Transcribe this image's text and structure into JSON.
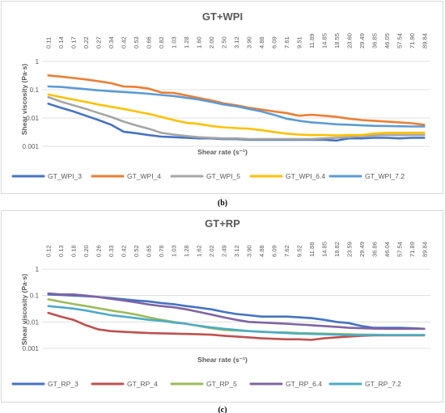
{
  "chart_data": [
    {
      "type": "line",
      "title": "GT+WPI",
      "xlabel": "Shear rate (s⁻¹)",
      "ylabel": "Shear viscosity (Pa·s)",
      "y_scale": "log",
      "ylim": [
        0.001,
        1
      ],
      "yticks": [
        "1",
        "0.1",
        "0.01",
        "0.001"
      ],
      "x_position": "top",
      "grid": "horizontal",
      "legend_position": "bottom",
      "categories": [
        "0.11",
        "0.14",
        "0.17",
        "0.22",
        "0.27",
        "0.34",
        "0.42",
        "0.53",
        "0.66",
        "0.82",
        "1.03",
        "1.28",
        "1.60",
        "2.00",
        "2.50",
        "3.12",
        "3.90",
        "4.88",
        "6.09",
        "7.61",
        "9.51",
        "11.89",
        "14.85",
        "18.55",
        "23.60",
        "29.49",
        "36.85",
        "46.05",
        "57.54",
        "71.90",
        "89.84"
      ],
      "series": [
        {
          "name": "GT_WPI_3",
          "color": "#4472c4",
          "values": [
            0.032,
            0.023,
            0.017,
            0.012,
            0.0085,
            0.0058,
            0.0033,
            0.0029,
            0.0025,
            0.0022,
            0.0021,
            0.002,
            0.0019,
            0.0019,
            0.0018,
            0.0018,
            0.0017,
            0.0017,
            0.0017,
            0.0017,
            0.0017,
            0.0017,
            0.0017,
            0.0016,
            0.0019,
            0.0019,
            0.002,
            0.002,
            0.0019,
            0.002,
            0.002
          ]
        },
        {
          "name": "GT_WPI_4",
          "color": "#ed7d31",
          "values": [
            0.32,
            0.29,
            0.26,
            0.23,
            0.2,
            0.17,
            0.13,
            0.125,
            0.11,
            0.08,
            0.077,
            0.063,
            0.051,
            0.042,
            0.033,
            0.028,
            0.023,
            0.02,
            0.017,
            0.015,
            0.012,
            0.013,
            0.012,
            0.011,
            0.0095,
            0.0085,
            0.008,
            0.0075,
            0.007,
            0.0065,
            0.0058
          ]
        },
        {
          "name": "GT_WPI_5",
          "color": "#a5a5a5",
          "values": [
            0.055,
            0.038,
            0.028,
            0.021,
            0.015,
            0.011,
            0.0075,
            0.0055,
            0.0042,
            0.003,
            0.0026,
            0.0023,
            0.0021,
            0.002,
            0.0019,
            0.0019,
            0.0018,
            0.0018,
            0.0018,
            0.0018,
            0.0018,
            0.0018,
            0.0019,
            0.002,
            0.0021,
            0.0023,
            0.0024,
            0.0025,
            0.0025,
            0.0025,
            0.0025
          ]
        },
        {
          "name": "GT_WPI_6.4",
          "color": "#ffc000",
          "values": [
            0.068,
            0.055,
            0.045,
            0.037,
            0.03,
            0.025,
            0.021,
            0.017,
            0.014,
            0.011,
            0.0085,
            0.0068,
            0.0062,
            0.0052,
            0.0047,
            0.0044,
            0.0042,
            0.0037,
            0.0032,
            0.0028,
            0.0026,
            0.0025,
            0.0025,
            0.0024,
            0.0025,
            0.0025,
            0.0028,
            0.003,
            0.003,
            0.003,
            0.003
          ]
        },
        {
          "name": "GT_WPI_7.2",
          "color": "#5b9bd5",
          "values": [
            0.13,
            0.125,
            0.115,
            0.105,
            0.095,
            0.088,
            0.083,
            0.078,
            0.072,
            0.065,
            0.06,
            0.052,
            0.045,
            0.037,
            0.03,
            0.026,
            0.021,
            0.017,
            0.013,
            0.0095,
            0.008,
            0.007,
            0.0065,
            0.006,
            0.0058,
            0.0055,
            0.0053,
            0.0052,
            0.0051,
            0.005,
            0.005
          ]
        }
      ]
    },
    {
      "type": "line",
      "title": "GT+RP",
      "xlabel": "Shear rate (s⁻¹)",
      "ylabel": "Shear viscosity (Pa·s)",
      "y_scale": "log",
      "ylim": [
        0.001,
        1
      ],
      "yticks": [
        "1",
        "0.1",
        "0.01",
        "0.001"
      ],
      "x_position": "top",
      "grid": "horizontal",
      "legend_position": "bottom",
      "categories": [
        "0.12",
        "0.13",
        "0.18",
        "0.20",
        "0.26",
        "0.33",
        "0.42",
        "0.52",
        "0.65",
        "0.78",
        "1.03",
        "1.28",
        "1.62",
        "2.02",
        "2.49",
        "3.12",
        "3.90",
        "4.88",
        "6.09",
        "7.62",
        "9.52",
        "11.88",
        "14.85",
        "18.82",
        "23.59",
        "29.49",
        "36.86",
        "46.04",
        "57.54",
        "71.89",
        "89.84"
      ],
      "series": [
        {
          "name": "GT_RP_3",
          "color": "#4472c4",
          "values": [
            0.11,
            0.105,
            0.1,
            0.095,
            0.088,
            0.08,
            0.072,
            0.065,
            0.06,
            0.052,
            0.047,
            0.04,
            0.035,
            0.03,
            0.024,
            0.02,
            0.018,
            0.016,
            0.016,
            0.016,
            0.015,
            0.014,
            0.012,
            0.01,
            0.009,
            0.007,
            0.006,
            0.006,
            0.006,
            0.0058,
            0.0055
          ]
        },
        {
          "name": "GT_RP_4",
          "color": "#c0504d",
          "values": [
            0.022,
            0.016,
            0.012,
            0.0075,
            0.0052,
            0.0045,
            0.0042,
            0.004,
            0.0038,
            0.0037,
            0.0036,
            0.0035,
            0.0034,
            0.0033,
            0.003,
            0.0028,
            0.0026,
            0.0024,
            0.0023,
            0.0022,
            0.0022,
            0.0021,
            0.0024,
            0.0026,
            0.0028,
            0.003,
            0.0031,
            0.0031,
            0.0031,
            0.0031,
            0.0031
          ]
        },
        {
          "name": "GT_RP_5",
          "color": "#9bbb59",
          "values": [
            0.072,
            0.058,
            0.048,
            0.04,
            0.033,
            0.027,
            0.023,
            0.019,
            0.015,
            0.012,
            0.01,
            0.0085,
            0.007,
            0.0058,
            0.005,
            0.0047,
            0.0045,
            0.0043,
            0.0041,
            0.004,
            0.0038,
            0.0037,
            0.0036,
            0.0035,
            0.0034,
            0.0033,
            0.0033,
            0.0032,
            0.0032,
            0.0032,
            0.0032
          ]
        },
        {
          "name": "GT_RP_6.4",
          "color": "#8064a2",
          "values": [
            0.12,
            0.11,
            0.11,
            0.1,
            0.088,
            0.075,
            0.065,
            0.055,
            0.046,
            0.04,
            0.036,
            0.03,
            0.024,
            0.019,
            0.015,
            0.012,
            0.01,
            0.0095,
            0.009,
            0.0085,
            0.008,
            0.0075,
            0.007,
            0.0065,
            0.006,
            0.0058,
            0.0056,
            0.0055,
            0.0055,
            0.0055,
            0.0055
          ]
        },
        {
          "name": "GT_RP_7.2",
          "color": "#4bacc6",
          "values": [
            0.04,
            0.036,
            0.032,
            0.027,
            0.022,
            0.018,
            0.016,
            0.014,
            0.012,
            0.011,
            0.0095,
            0.0085,
            0.0072,
            0.0062,
            0.0055,
            0.005,
            0.0045,
            0.0042,
            0.004,
            0.0038,
            0.0036,
            0.0035,
            0.0034,
            0.0033,
            0.0032,
            0.0032,
            0.0032,
            0.0032,
            0.0032,
            0.0032,
            0.0032
          ]
        }
      ]
    }
  ],
  "captions": [
    "(b)",
    "(c)"
  ]
}
